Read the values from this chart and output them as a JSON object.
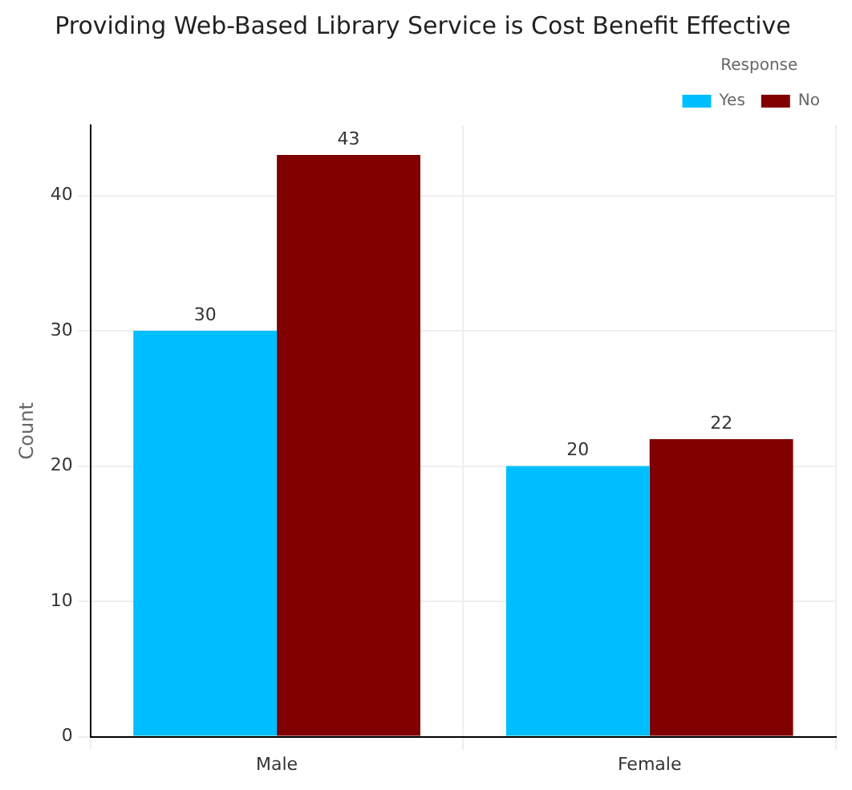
{
  "chart_data": {
    "type": "bar",
    "title": "Providing Web-Based Library Service is Cost Benefit Effective",
    "ylabel": "Count",
    "legend_title": "Response",
    "categories": [
      "Male",
      "Female"
    ],
    "series": [
      {
        "name": "Yes",
        "color": "#00bfff",
        "values": [
          30,
          20
        ]
      },
      {
        "name": "No",
        "color": "#800000",
        "values": [
          43,
          22
        ]
      }
    ],
    "ylim": [
      0,
      45.2
    ],
    "yticks": [
      0,
      10,
      20,
      30,
      40
    ],
    "grid": true,
    "legend": "top right",
    "data_labels": true
  }
}
